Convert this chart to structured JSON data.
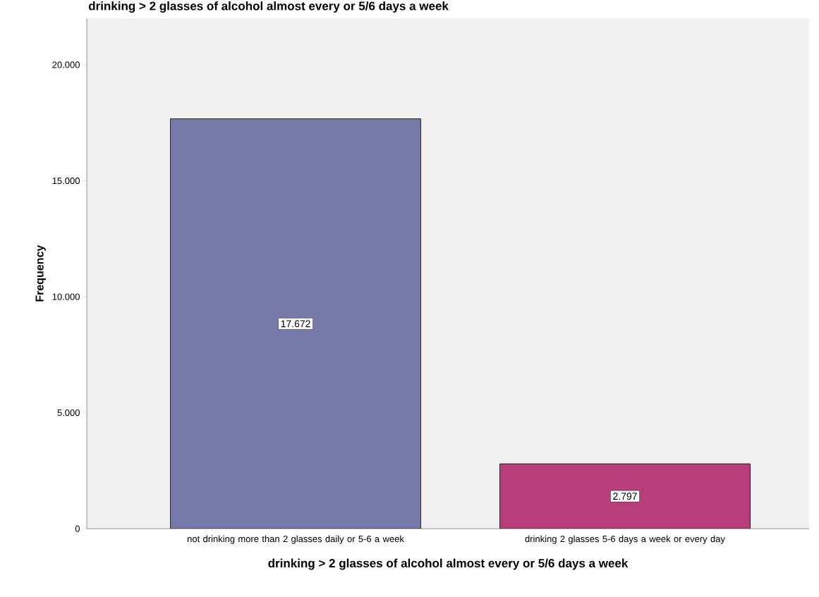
{
  "chart_data": {
    "type": "bar",
    "title": "drinking > 2 glasses of alcohol almost every or 5/6 days a week",
    "xlabel": "drinking > 2 glasses of alcohol almost every or 5/6 days a week",
    "ylabel": "Frequency",
    "categories": [
      "not drinking more than 2 glasses daily or 5-6 a week",
      "drinking 2 glasses 5-6 days a week or every day"
    ],
    "values": [
      17672,
      2797
    ],
    "colors": [
      "#7779a8",
      "#b83e7a"
    ],
    "value_labels": [
      "17.672",
      "2.797"
    ],
    "ylim": [
      0,
      22000
    ],
    "yticks": [
      {
        "value": 0,
        "label": "0"
      },
      {
        "value": 5000,
        "label": "5.000"
      },
      {
        "value": 10000,
        "label": "10.000"
      },
      {
        "value": 15000,
        "label": "15.000"
      },
      {
        "value": 20000,
        "label": "20.000"
      }
    ]
  }
}
